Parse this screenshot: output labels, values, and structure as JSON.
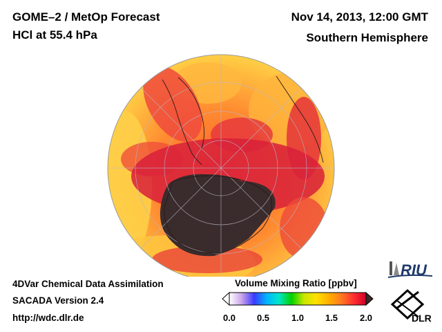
{
  "header": {
    "title_line1": "GOME–2 / MetOp Forecast",
    "title_line2": "HCl at 55.4 hPa",
    "date": "Nov 14, 2013, 12:00 GMT",
    "region": "Southern Hemisphere"
  },
  "footer": {
    "line1": "4DVar Chemical Data Assimilation",
    "line2": "SACADA Version 2.4",
    "line3": "http://wdc.dlr.de"
  },
  "colorbar": {
    "title": "Volume Mixing Ratio [ppbv]",
    "ticks": [
      "0.0",
      "0.5",
      "1.0",
      "1.5",
      "2.0"
    ],
    "range": [
      0.0,
      2.0
    ],
    "colors": [
      "#ffffff",
      "#c9a3e8",
      "#3a3aff",
      "#00b4ff",
      "#00e6c8",
      "#00d000",
      "#c8e600",
      "#ffe000",
      "#ffb000",
      "#ff7a20",
      "#ff3030",
      "#d00028",
      "#3a2a2a"
    ]
  },
  "logos": {
    "riu": "RIU",
    "dlr": "DLR"
  },
  "map": {
    "projection": "orthographic",
    "center": "south-pole",
    "ocean_colors": [
      "#ffd24a",
      "#ffb23a",
      "#ff7a30",
      "#f24a3c",
      "#d62a36"
    ],
    "vortex_color": "#3a2c2c"
  }
}
